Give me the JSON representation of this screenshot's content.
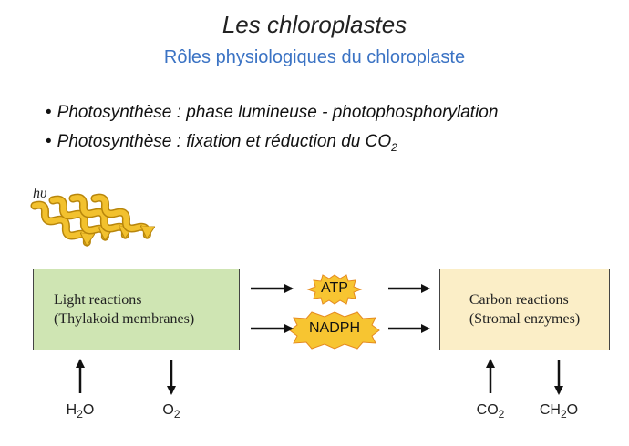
{
  "header": {
    "title": "Les chloroplastes",
    "subtitle": "Rôles physiologiques du chloroplaste"
  },
  "bullets": [
    {
      "text": "Photosynthèse : phase lumineuse - photophosphorylation"
    },
    {
      "text": "Photosynthèse : fixation et réduction du CO",
      "sub": "2"
    }
  ],
  "diagram": {
    "light_symbol": "hυ",
    "light_reactions": {
      "line1": "Light reactions",
      "line2": "(Thylakoid membranes)"
    },
    "carbon_reactions": {
      "line1": "Carbon reactions",
      "line2": "(Stromal enzymes)"
    },
    "atp": "ATP",
    "nadph": "NADPH",
    "molecules": {
      "h2o": {
        "main": "H",
        "sub": "2",
        "tail": "O"
      },
      "o2": {
        "main": "O",
        "sub": "2",
        "tail": ""
      },
      "co2": {
        "main": "CO",
        "sub": "2",
        "tail": ""
      },
      "ch2o": {
        "main": "CH",
        "sub": "2",
        "tail": "O"
      }
    },
    "colors": {
      "light_box": "#cfe5b3",
      "carbon_box": "#fbeec7",
      "burst": "#f7c531",
      "burst_edge": "#e58a1f",
      "wave": "#f2c12e",
      "wave_edge": "#b8860b",
      "subtitle": "#3b73c4"
    }
  }
}
